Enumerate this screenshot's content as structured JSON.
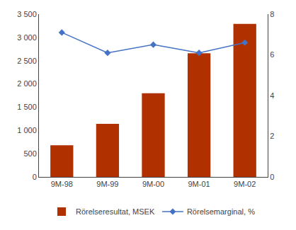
{
  "chart_data": {
    "type": "bar",
    "categories": [
      "9M-98",
      "9M-99",
      "9M-00",
      "9M-01",
      "9M-02"
    ],
    "series": [
      {
        "name": "Rörelseresultat, MSEK",
        "type": "bar",
        "color": "#B03000",
        "values": [
          680,
          1140,
          1800,
          2660,
          3290
        ]
      },
      {
        "name": "Rörelsemarginal, %",
        "type": "line",
        "color": "#4472C4",
        "marker": "diamond",
        "axis": "y2",
        "values": [
          7.1,
          6.1,
          6.5,
          6.1,
          6.6
        ]
      }
    ],
    "ylim": [
      0,
      3500
    ],
    "yticks": [
      0,
      500,
      {
        "value": 1000,
        "label": "1 000"
      },
      {
        "value": 1500,
        "label": "1 500"
      },
      {
        "value": 2000,
        "label": "2 000"
      },
      {
        "value": 2500,
        "label": "2 500"
      },
      {
        "value": 3000,
        "label": "3 000"
      },
      {
        "value": 3500,
        "label": "3 500"
      }
    ],
    "y2lim": [
      0,
      8
    ],
    "y2ticks": [
      0,
      2,
      4,
      6,
      8
    ],
    "grid": false,
    "legend": "bottom"
  }
}
